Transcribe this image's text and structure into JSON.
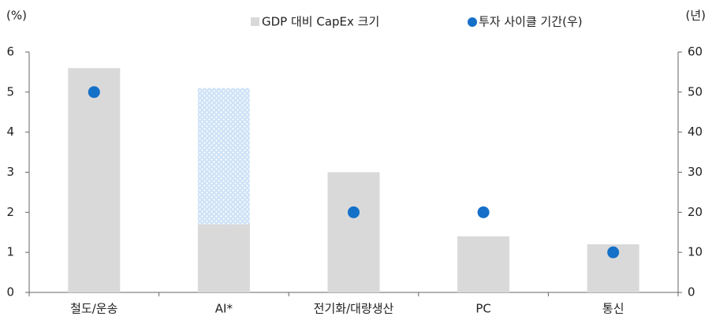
{
  "chart_data": {
    "type": "bar",
    "y_unit": "(%)",
    "y2_unit": "(년)",
    "categories": [
      "철도/운송",
      "AI*",
      "전기화/대량생산",
      "PC",
      "통신"
    ],
    "series": [
      {
        "name": "GDP 대비 CapEx 크기",
        "color": "#d9d9d9",
        "values": [
          5.6,
          1.7,
          3,
          1.4,
          1.2
        ]
      },
      {
        "color": "#cfe2f7",
        "pattern": "dots",
        "stacked": true,
        "values": [
          null,
          3.4,
          null,
          null,
          null
        ]
      },
      {
        "name": "투자 사이클 기간(우)",
        "type": "scatter",
        "color": "#1570c8",
        "axis": "y2",
        "values": [
          50,
          null,
          20,
          20,
          10
        ]
      }
    ],
    "ylim": [
      0,
      6
    ],
    "yticks": [
      0,
      1,
      2,
      3,
      4,
      5,
      6
    ],
    "y2lim": [
      0,
      60
    ],
    "y2ticks": [
      0,
      10,
      20,
      30,
      40,
      50,
      60
    ]
  }
}
